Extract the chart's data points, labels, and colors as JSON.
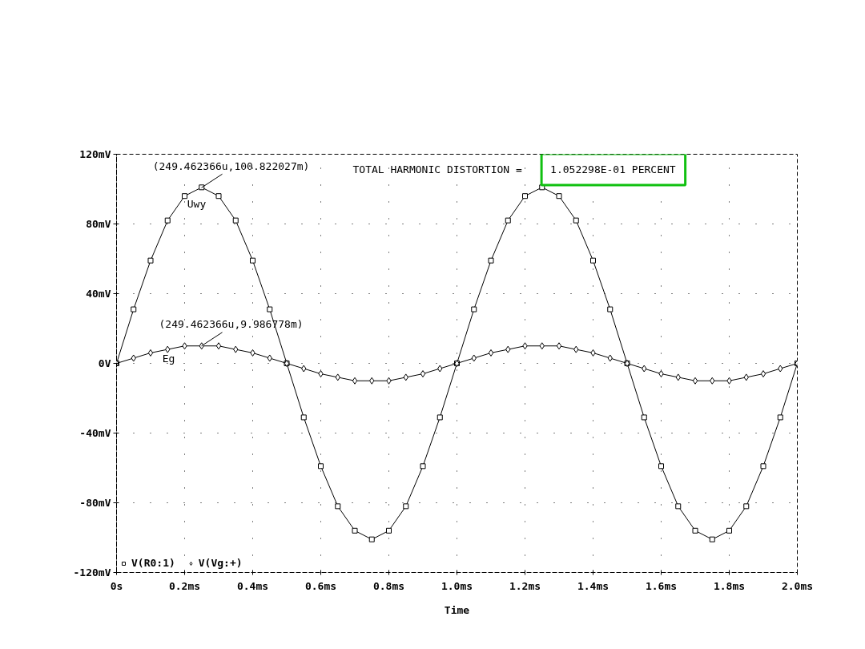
{
  "chart_data": {
    "type": "line",
    "xlabel": "Time",
    "x": [
      0,
      0.05,
      0.1,
      0.15,
      0.2,
      0.25,
      0.3,
      0.35,
      0.4,
      0.45,
      0.5,
      0.55,
      0.6,
      0.65,
      0.7,
      0.75,
      0.8,
      0.85,
      0.9,
      0.95,
      1.0,
      1.05,
      1.1,
      1.15,
      1.2,
      1.25,
      1.3,
      1.35,
      1.4,
      1.45,
      1.5,
      1.55,
      1.6,
      1.65,
      1.7,
      1.75,
      1.8,
      1.85,
      1.9,
      1.95,
      2.0
    ],
    "xlim": [
      0,
      2.0
    ],
    "xticks": [
      {
        "value": 0,
        "label": "0s"
      },
      {
        "value": 0.2,
        "label": "0.2ms"
      },
      {
        "value": 0.4,
        "label": "0.4ms"
      },
      {
        "value": 0.6,
        "label": "0.6ms"
      },
      {
        "value": 0.8,
        "label": "0.8ms"
      },
      {
        "value": 1.0,
        "label": "1.0ms"
      },
      {
        "value": 1.2,
        "label": "1.2ms"
      },
      {
        "value": 1.4,
        "label": "1.4ms"
      },
      {
        "value": 1.6,
        "label": "1.6ms"
      },
      {
        "value": 1.8,
        "label": "1.8ms"
      },
      {
        "value": 2.0,
        "label": "2.0ms"
      }
    ],
    "ylim": [
      -120,
      120
    ],
    "yticks": [
      {
        "value": -120,
        "label": "-120mV"
      },
      {
        "value": -80,
        "label": "-80mV"
      },
      {
        "value": -40,
        "label": "-40mV"
      },
      {
        "value": 0,
        "label": "0V"
      },
      {
        "value": 40,
        "label": "40mV"
      },
      {
        "value": 80,
        "label": "80mV"
      },
      {
        "value": 120,
        "label": "120mV"
      }
    ],
    "series": [
      {
        "name": "V(R0:1)",
        "color": "#000000",
        "marker": "square",
        "values": [
          0,
          31,
          59,
          82,
          96,
          101,
          96,
          82,
          59,
          31,
          0,
          -31,
          -59,
          -82,
          -96,
          -101,
          -96,
          -82,
          -59,
          -31,
          0,
          31,
          59,
          82,
          96,
          101,
          96,
          82,
          59,
          31,
          0,
          -31,
          -59,
          -82,
          -96,
          -101,
          -96,
          -82,
          -59,
          -31,
          0
        ]
      },
      {
        "name": "V(Vg:+)",
        "color": "#000000",
        "marker": "diamond",
        "values": [
          0,
          3,
          6,
          8,
          10,
          10,
          10,
          8,
          6,
          3,
          0,
          -3,
          -6,
          -8,
          -10,
          -10,
          -10,
          -8,
          -6,
          -3,
          0,
          3,
          6,
          8,
          10,
          10,
          10,
          8,
          6,
          3,
          0,
          -3,
          -6,
          -8,
          -10,
          -10,
          -10,
          -8,
          -6,
          -3,
          0
        ]
      }
    ],
    "grid": true,
    "legend": "bottom left",
    "line_style": "solid",
    "annotations": [
      {
        "text": "(249.462366u,100.822027m)",
        "x": 0.2495,
        "y": 100.8
      },
      {
        "text": "(249.462366u,9.986778m)",
        "x": 0.2495,
        "y": 9.99
      },
      "Uwy",
      "Eg",
      "TOTAL HARMONIC DISTORTION =",
      "1.052298E-01 PERCENT"
    ]
  }
}
